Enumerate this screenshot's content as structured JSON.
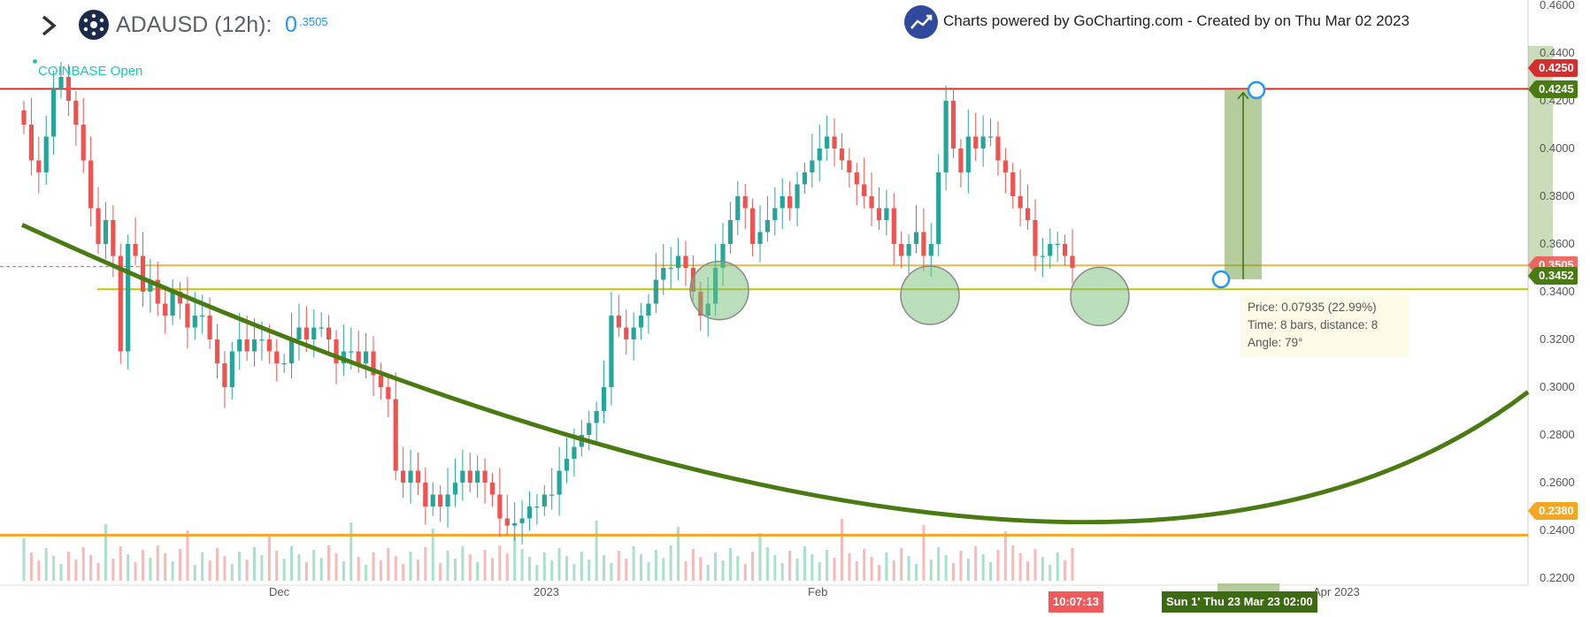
{
  "header": {
    "symbol_label": "ADAUSD (12h):",
    "price_main": "0",
    "price_sup": ".3505",
    "exchange_label": "COINBASE Open",
    "powered_by": "Charts powered by GoCharting.com - Created by  on Thu Mar 02 2023"
  },
  "colors": {
    "up": "#26a69a",
    "down": "#ef5350",
    "resistance": "#d32f2f",
    "support_yellow": "#c9c200",
    "support_orange": "#f5a623",
    "curve": "#4a7a12",
    "measure": "#6b9a3a"
  },
  "x_axis": {
    "tick_labels": [
      "Dec",
      "2023",
      "Feb",
      "Apr 2023"
    ],
    "badge_time": "10:07:13",
    "badge_range": "Sun 1' Thu 23 Mar 23 02:00"
  },
  "y_axis": {
    "ticks": [
      "0.4600",
      "0.4400",
      "0.4200",
      "0.4000",
      "0.3800",
      "0.3600",
      "0.3400",
      "0.3200",
      "0.3000",
      "0.2800",
      "0.2600",
      "0.2400",
      "0.2200"
    ],
    "tags": {
      "resistance": "0.4250",
      "measure_top": "0.4245",
      "last": "0.3505",
      "measure_bottom": "0.3452",
      "support_low": "0.2380"
    }
  },
  "measure": {
    "line1": "Price: 0.07935 (22.99%)",
    "line2": "Time: 8 bars,  distance: 8",
    "line3": "Angle: 79°"
  },
  "chart_data": {
    "type": "candlestick",
    "title": "ADAUSD (12h)",
    "ylim": [
      0.215,
      0.465
    ],
    "grid": false,
    "legend": "none",
    "horizontal_levels": [
      {
        "name": "resistance",
        "value": 0.425
      },
      {
        "name": "support-upper",
        "value": 0.351
      },
      {
        "name": "support-lower",
        "value": 0.341
      },
      {
        "name": "support-low",
        "value": 0.238
      }
    ],
    "measure_tool": {
      "from": 0.3452,
      "to": 0.4245,
      "change": 0.07935,
      "change_pct": 22.99,
      "bars": 8
    },
    "candle_closes": [
      0.41,
      0.395,
      0.39,
      0.405,
      0.425,
      0.43,
      0.42,
      0.41,
      0.395,
      0.375,
      0.36,
      0.37,
      0.355,
      0.315,
      0.36,
      0.355,
      0.34,
      0.345,
      0.335,
      0.33,
      0.34,
      0.335,
      0.325,
      0.33,
      0.33,
      0.32,
      0.31,
      0.3,
      0.315,
      0.32,
      0.315,
      0.32,
      0.32,
      0.315,
      0.31,
      0.31,
      0.32,
      0.325,
      0.32,
      0.325,
      0.325,
      0.32,
      0.31,
      0.315,
      0.315,
      0.31,
      0.315,
      0.305,
      0.3,
      0.295,
      0.265,
      0.26,
      0.265,
      0.26,
      0.25,
      0.255,
      0.25,
      0.255,
      0.26,
      0.265,
      0.26,
      0.265,
      0.26,
      0.255,
      0.245,
      0.242,
      0.243,
      0.245,
      0.25,
      0.25,
      0.255,
      0.255,
      0.265,
      0.27,
      0.275,
      0.28,
      0.285,
      0.29,
      0.3,
      0.33,
      0.325,
      0.32,
      0.325,
      0.33,
      0.335,
      0.345,
      0.35,
      0.35,
      0.355,
      0.35,
      0.34,
      0.33,
      0.335,
      0.35,
      0.36,
      0.37,
      0.38,
      0.375,
      0.36,
      0.365,
      0.37,
      0.375,
      0.38,
      0.375,
      0.385,
      0.39,
      0.395,
      0.4,
      0.405,
      0.4,
      0.395,
      0.39,
      0.385,
      0.38,
      0.375,
      0.37,
      0.375,
      0.36,
      0.355,
      0.36,
      0.365,
      0.355,
      0.36,
      0.39,
      0.42,
      0.4,
      0.39,
      0.405,
      0.4,
      0.405,
      0.405,
      0.395,
      0.39,
      0.38,
      0.375,
      0.37,
      0.355,
      0.355,
      0.36,
      0.36,
      0.355,
      0.35
    ],
    "rounded_bottom_curve": {
      "start": 0.368,
      "min": 0.247,
      "end": 0.298
    }
  }
}
